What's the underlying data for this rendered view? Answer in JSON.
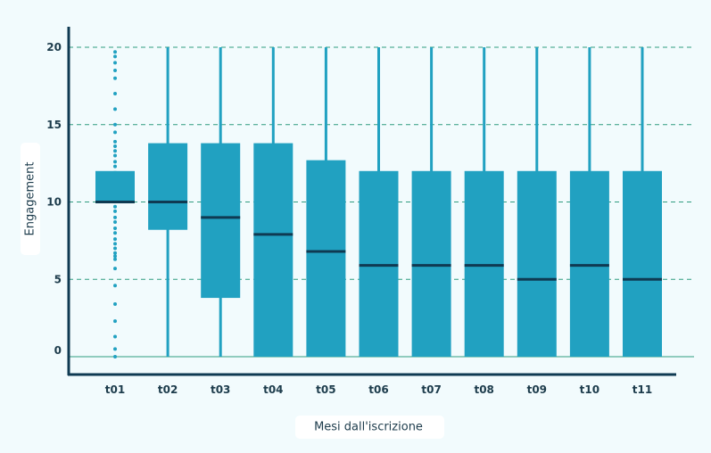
{
  "chart_data": {
    "type": "box",
    "xlabel": "Mesi dall'iscrizione",
    "ylabel": "Engagement",
    "ylim": [
      0,
      20
    ],
    "yticks": [
      0,
      5,
      10,
      15,
      20
    ],
    "grid": "horizontal-dashed",
    "categories": [
      "t01",
      "t02",
      "t03",
      "t04",
      "t05",
      "t06",
      "t07",
      "t08",
      "t09",
      "t10",
      "t11"
    ],
    "boxes": [
      {
        "category": "t01",
        "whisker_low": 10,
        "q1": 10,
        "median": 10,
        "q3": 12,
        "whisker_high": 12,
        "outliers": [
          0,
          0.5,
          1.3,
          2.3,
          3.4,
          4.6,
          5.7,
          6.3,
          6.5,
          6.7,
          7,
          7.3,
          7.6,
          8,
          8.3,
          8.7,
          9,
          9.4,
          9.7,
          12.3,
          12.6,
          13,
          13.3,
          13.6,
          13.9,
          14.5,
          15,
          16,
          17,
          18,
          18.5,
          19,
          19.4,
          19.7
        ]
      },
      {
        "category": "t02",
        "whisker_low": 0,
        "q1": 8.2,
        "median": 10,
        "q3": 13.8,
        "whisker_high": 20
      },
      {
        "category": "t03",
        "whisker_low": 0,
        "q1": 3.8,
        "median": 9,
        "q3": 13.8,
        "whisker_high": 20
      },
      {
        "category": "t04",
        "whisker_low": 0,
        "q1": 0,
        "median": 7.9,
        "q3": 13.8,
        "whisker_high": 20
      },
      {
        "category": "t05",
        "whisker_low": 0,
        "q1": 0,
        "median": 6.8,
        "q3": 12.7,
        "whisker_high": 20
      },
      {
        "category": "t06",
        "whisker_low": 0,
        "q1": 0,
        "median": 5.9,
        "q3": 12,
        "whisker_high": 20
      },
      {
        "category": "t07",
        "whisker_low": 0,
        "q1": 0,
        "median": 5.9,
        "q3": 12,
        "whisker_high": 20
      },
      {
        "category": "t08",
        "whisker_low": 0,
        "q1": 0,
        "median": 5.9,
        "q3": 12,
        "whisker_high": 20
      },
      {
        "category": "t09",
        "whisker_low": 0,
        "q1": 0,
        "median": 5,
        "q3": 12,
        "whisker_high": 20
      },
      {
        "category": "t10",
        "whisker_low": 0,
        "q1": 0,
        "median": 5.9,
        "q3": 12,
        "whisker_high": 20
      },
      {
        "category": "t11",
        "whisker_low": 0,
        "q1": 0,
        "median": 5,
        "q3": 12,
        "whisker_high": 20
      }
    ],
    "colors": {
      "box": "#21a1c1",
      "median": "#0f3a52",
      "axis": "#0f3a52",
      "grid": "#2f9c80",
      "tick_text": "#1d3c4c",
      "background": "#f2fbfd",
      "label_bg": "#ffffff"
    }
  }
}
